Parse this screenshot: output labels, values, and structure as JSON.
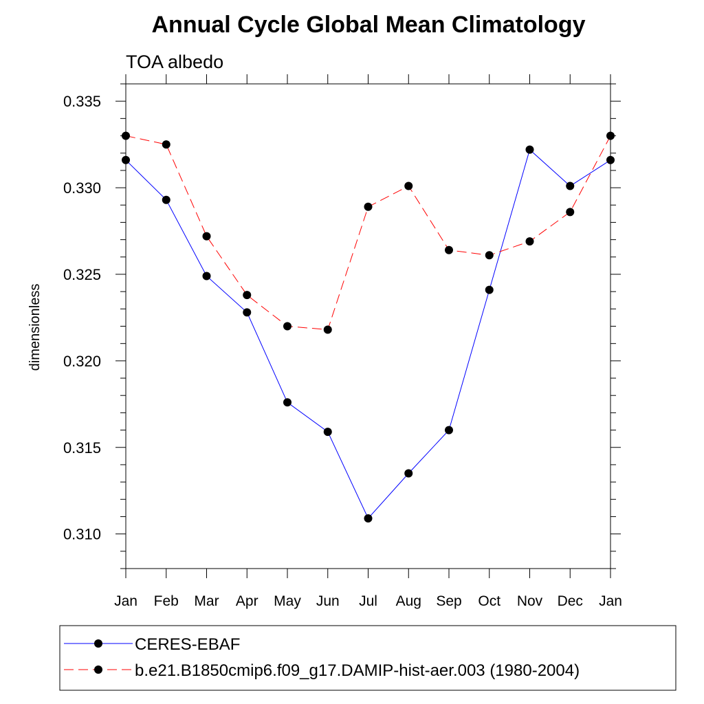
{
  "chart_data": {
    "type": "line",
    "title": "Annual Cycle Global Mean Climatology",
    "subtitle": "TOA albedo",
    "xlabel": "",
    "ylabel": "dimensionless",
    "categories": [
      "Jan",
      "Feb",
      "Mar",
      "Apr",
      "May",
      "Jun",
      "Jul",
      "Aug",
      "Sep",
      "Oct",
      "Nov",
      "Dec",
      "Jan"
    ],
    "ylim": [
      0.308,
      0.336
    ],
    "yticks": [
      0.31,
      0.315,
      0.32,
      0.325,
      0.33,
      0.335
    ],
    "ytick_labels": [
      "0.310",
      "0.315",
      "0.320",
      "0.325",
      "0.330",
      "0.335"
    ],
    "yminor_step": 0.001,
    "grid": false,
    "legend_position": "bottom",
    "series": [
      {
        "name": "CERES-EBAF",
        "color": "#0000ff",
        "dashed": false,
        "values": [
          0.3316,
          0.3293,
          0.3249,
          0.3228,
          0.3176,
          0.3159,
          0.3109,
          0.3135,
          0.316,
          0.3241,
          0.3322,
          0.3301,
          0.3316
        ]
      },
      {
        "name": "b.e21.B1850cmip6.f09_g17.DAMIP-hist-aer.003 (1980-2004)",
        "color": "#ff0000",
        "dashed": true,
        "values": [
          0.333,
          0.3325,
          0.3272,
          0.3238,
          0.322,
          0.3218,
          0.3289,
          0.3301,
          0.3264,
          0.3261,
          0.3269,
          0.3286,
          0.333
        ]
      }
    ]
  }
}
